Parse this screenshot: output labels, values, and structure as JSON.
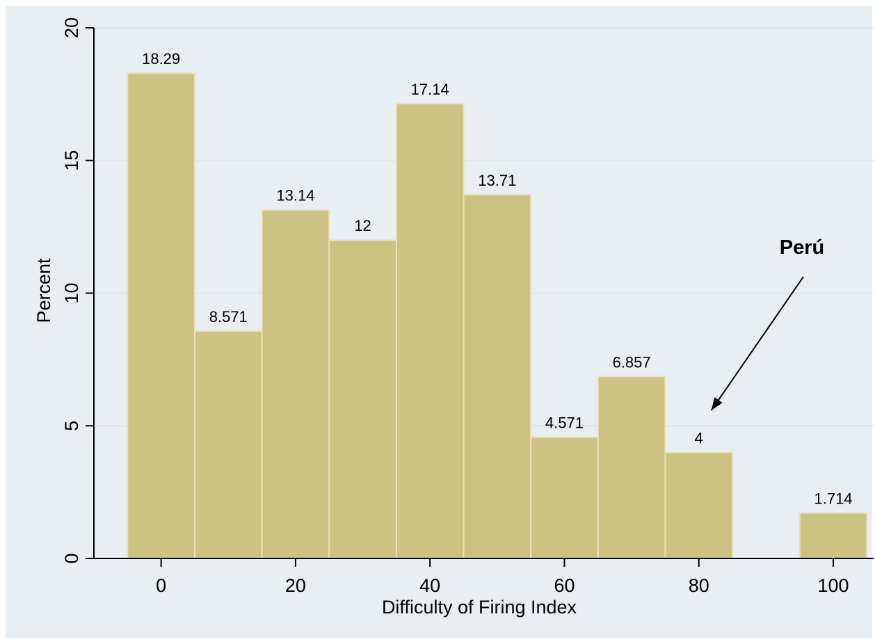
{
  "chart_data": {
    "type": "bar",
    "subtype": "histogram",
    "xlabel": "Difficulty of Firing Index",
    "ylabel": "Percent",
    "xlim": [
      -10,
      106
    ],
    "ylim": [
      0,
      20
    ],
    "x_ticks": [
      0,
      20,
      40,
      60,
      80,
      100
    ],
    "y_ticks": [
      0,
      5,
      10,
      15,
      20
    ],
    "bins": [
      {
        "x0": -5,
        "x1": 5,
        "value": 18.29,
        "label": "18.29"
      },
      {
        "x0": 5,
        "x1": 15,
        "value": 8.571,
        "label": "8.571"
      },
      {
        "x0": 15,
        "x1": 25,
        "value": 13.14,
        "label": "13.14"
      },
      {
        "x0": 25,
        "x1": 35,
        "value": 12,
        "label": "12"
      },
      {
        "x0": 35,
        "x1": 45,
        "value": 17.14,
        "label": "17.14"
      },
      {
        "x0": 45,
        "x1": 55,
        "value": 13.71,
        "label": "13.71"
      },
      {
        "x0": 55,
        "x1": 65,
        "value": 4.571,
        "label": "4.571"
      },
      {
        "x0": 65,
        "x1": 75,
        "value": 6.857,
        "label": "6.857"
      },
      {
        "x0": 75,
        "x1": 85,
        "value": 4,
        "label": "4"
      },
      {
        "x0": 95,
        "x1": 105,
        "value": 1.714,
        "label": "1.714"
      }
    ],
    "annotation": {
      "text": "Perú",
      "points_to_x": 80
    },
    "grid": true,
    "legend": "none",
    "colors": {
      "bar_fill": "#ccc382",
      "bar_edge": "#ebe2ba",
      "panel_bg": "#e8eef1",
      "grid": "#dbe5ea"
    }
  }
}
